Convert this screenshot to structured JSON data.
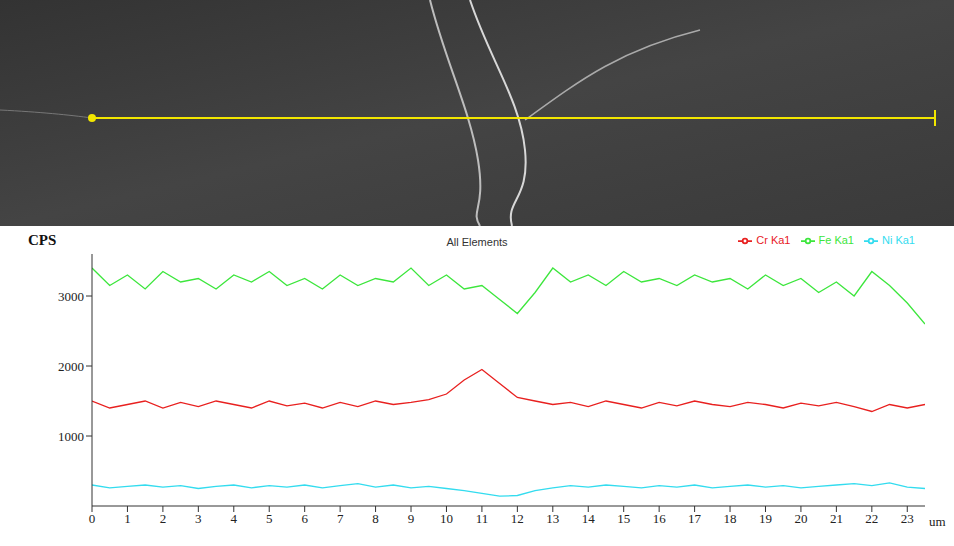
{
  "chart_data": {
    "type": "line",
    "title": "All Elements",
    "xlabel": "um",
    "ylabel": "CPS",
    "x": [
      0,
      0.5,
      1,
      1.5,
      2,
      2.5,
      3,
      3.5,
      4,
      4.5,
      5,
      5.5,
      6,
      6.5,
      7,
      7.5,
      8,
      8.5,
      9,
      9.5,
      10,
      10.5,
      11,
      11.5,
      12,
      12.5,
      13,
      13.5,
      14,
      14.5,
      15,
      15.5,
      16,
      16.5,
      17,
      17.5,
      18,
      18.5,
      19,
      19.5,
      20,
      20.5,
      21,
      21.5,
      22,
      22.5,
      23,
      23.5
    ],
    "series": [
      {
        "name": "Cr Ka1",
        "color": "#e8201f",
        "values": [
          1500,
          1400,
          1450,
          1500,
          1400,
          1480,
          1420,
          1500,
          1450,
          1400,
          1500,
          1430,
          1470,
          1400,
          1480,
          1420,
          1500,
          1450,
          1480,
          1520,
          1600,
          1800,
          1950,
          1750,
          1550,
          1500,
          1450,
          1480,
          1420,
          1500,
          1450,
          1400,
          1480,
          1430,
          1500,
          1450,
          1420,
          1480,
          1450,
          1400,
          1470,
          1430,
          1480,
          1420,
          1350,
          1450,
          1400,
          1450
        ]
      },
      {
        "name": "Fe Ka1",
        "color": "#3ce63c",
        "values": [
          3400,
          3150,
          3300,
          3100,
          3350,
          3200,
          3250,
          3100,
          3300,
          3200,
          3350,
          3150,
          3250,
          3100,
          3300,
          3150,
          3250,
          3200,
          3400,
          3150,
          3300,
          3100,
          3150,
          2950,
          2750,
          3050,
          3400,
          3200,
          3300,
          3150,
          3350,
          3200,
          3250,
          3150,
          3300,
          3200,
          3250,
          3100,
          3300,
          3150,
          3250,
          3050,
          3200,
          3000,
          3350,
          3150,
          2900,
          2600
        ]
      },
      {
        "name": "Ni Ka1",
        "color": "#33dcef",
        "values": [
          300,
          260,
          280,
          300,
          270,
          290,
          250,
          280,
          300,
          260,
          290,
          270,
          300,
          260,
          290,
          320,
          270,
          300,
          260,
          280,
          250,
          220,
          180,
          140,
          150,
          220,
          260,
          290,
          270,
          300,
          280,
          260,
          290,
          270,
          300,
          260,
          280,
          300,
          270,
          290,
          260,
          280,
          300,
          320,
          290,
          330,
          270,
          250
        ]
      }
    ],
    "xlim": [
      0,
      23.5
    ],
    "xticks": [
      0,
      1,
      2,
      3,
      4,
      5,
      6,
      7,
      8,
      9,
      10,
      11,
      12,
      13,
      14,
      15,
      16,
      17,
      18,
      19,
      20,
      21,
      22,
      23
    ],
    "ylim": [
      0,
      3600
    ],
    "yticks": [
      1000,
      2000,
      3000
    ],
    "grid": false,
    "legend": "top-right"
  }
}
